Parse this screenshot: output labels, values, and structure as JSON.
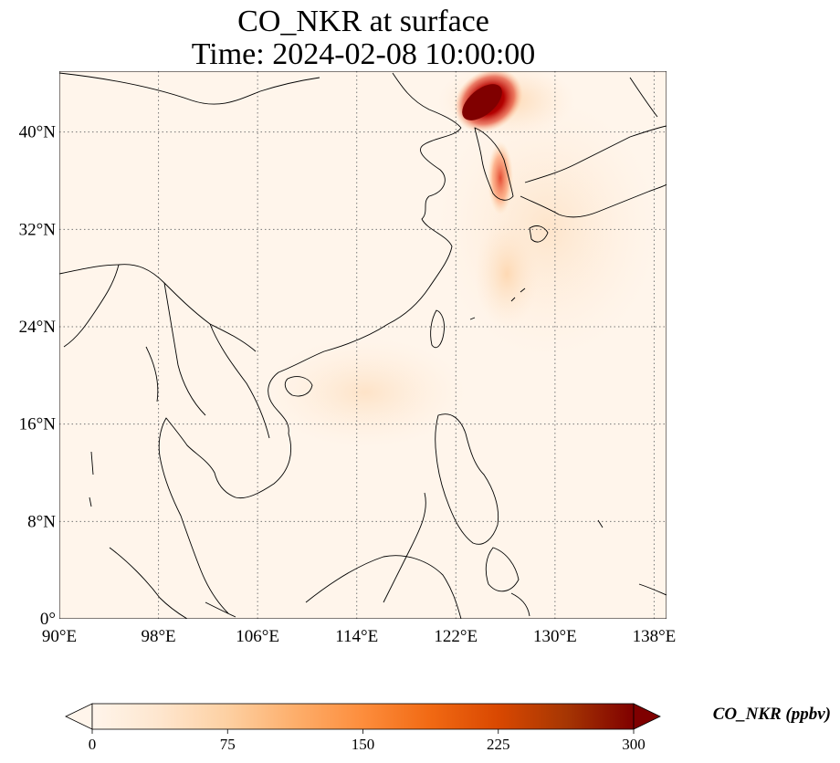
{
  "title": {
    "line1": "CO_NKR at surface",
    "line2": "Time: 2024-02-08 10:00:00"
  },
  "map": {
    "lon_range": [
      90,
      139
    ],
    "lat_range": [
      0,
      45
    ],
    "x_ticks": [
      "90°E",
      "98°E",
      "106°E",
      "114°E",
      "122°E",
      "130°E",
      "138°E"
    ],
    "x_tick_values": [
      90,
      98,
      106,
      114,
      122,
      130,
      138
    ],
    "y_ticks": [
      "0°",
      "8°N",
      "16°N",
      "24°N",
      "32°N",
      "40°N"
    ],
    "y_tick_values": [
      0,
      8,
      16,
      24,
      32,
      40
    ],
    "gridlines": "dotted",
    "background_color": "#fff5eb",
    "coastline_color": "#000000"
  },
  "plumes": [
    {
      "lon": 126.0,
      "lat": 43.5,
      "value": 300
    },
    {
      "lon": 125.0,
      "lat": 41.5,
      "value": 290
    },
    {
      "lon": 127.0,
      "lat": 37.0,
      "value": 160
    },
    {
      "lon": 128.0,
      "lat": 30.0,
      "value": 40
    },
    {
      "lon": 114.0,
      "lat": 18.0,
      "value": 20
    }
  ],
  "colorbar": {
    "label": "CO_NKR (ppbv)",
    "min": 0,
    "max": 300,
    "ticks": [
      "0",
      "75",
      "150",
      "225",
      "300"
    ],
    "tick_values": [
      0,
      75,
      150,
      225,
      300
    ],
    "colors": [
      "#fff5eb",
      "#fee6ce",
      "#fdd0a2",
      "#fdae6b",
      "#fd8d3c",
      "#f16913",
      "#d94801",
      "#a63603",
      "#7f2704"
    ],
    "extend": "both"
  }
}
